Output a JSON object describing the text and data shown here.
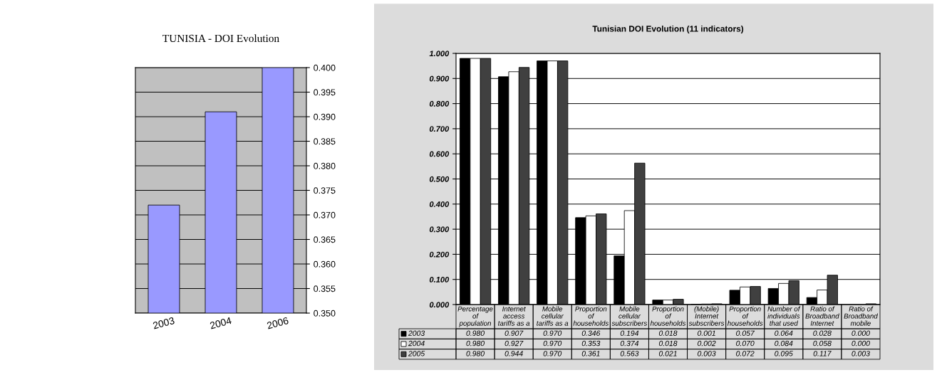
{
  "chart_data": [
    {
      "type": "bar",
      "title": "TUNISIA - DOI Evolution",
      "categories": [
        "2003",
        "2004",
        "2006"
      ],
      "series": [
        {
          "color": "#9999ff",
          "values": [
            0.372,
            0.391,
            0.4
          ]
        }
      ],
      "ylim": [
        0.35,
        0.4
      ],
      "yticks": [
        {
          "value": 0.35,
          "label": "0.350"
        },
        {
          "value": 0.355,
          "label": "0.355"
        },
        {
          "value": 0.36,
          "label": "0.360"
        },
        {
          "value": 0.365,
          "label": "0.365"
        },
        {
          "value": 0.37,
          "label": "0.370"
        },
        {
          "value": 0.375,
          "label": "0.375"
        },
        {
          "value": 0.38,
          "label": "0.380"
        },
        {
          "value": 0.385,
          "label": "0.385"
        },
        {
          "value": 0.39,
          "label": "0.390"
        },
        {
          "value": 0.395,
          "label": "0.395"
        },
        {
          "value": 0.4,
          "label": "0.400"
        }
      ],
      "grid": "y"
    },
    {
      "type": "bar",
      "title": "Tunisian DOI Evolution (11 indicators)",
      "categories": [
        "Percentage\nof\npopulation",
        "Internet\naccess\ntariffs as a",
        "Mobile\ncellular\ntariffs as a",
        "Proportion\nof\nhouseholds",
        "Mobile\ncellular\nsubscribers",
        "Proportion\nof\nhouseholds",
        "(Mobile)\nInternet\nsubscribers",
        "Proportion\nof\nhouseholds",
        "Number of\nindividuals\nthat used",
        "Ratio of\nBroadband\nInternet",
        "Ratio of\nBroadband\nmobile"
      ],
      "series": [
        {
          "name": "2003",
          "color": "#000000",
          "values": [
            0.98,
            0.907,
            0.97,
            0.346,
            0.194,
            0.018,
            0.001,
            0.057,
            0.064,
            0.028,
            0.0
          ],
          "value_labels": [
            "0.980",
            "0.907",
            "0.970",
            "0.346",
            "0.194",
            "0.018",
            "0.001",
            "0.057",
            "0.064",
            "0.028",
            "0.000"
          ]
        },
        {
          "name": "2004",
          "color": "#ffffff",
          "values": [
            0.98,
            0.927,
            0.97,
            0.353,
            0.374,
            0.018,
            0.002,
            0.07,
            0.084,
            0.058,
            0.0
          ],
          "value_labels": [
            "0.980",
            "0.927",
            "0.970",
            "0.353",
            "0.374",
            "0.018",
            "0.002",
            "0.070",
            "0.084",
            "0.058",
            "0.000"
          ]
        },
        {
          "name": "2005",
          "color": "#404040",
          "values": [
            0.98,
            0.944,
            0.97,
            0.361,
            0.563,
            0.021,
            0.003,
            0.072,
            0.095,
            0.117,
            0.003
          ],
          "value_labels": [
            "0.980",
            "0.944",
            "0.970",
            "0.361",
            "0.563",
            "0.021",
            "0.003",
            "0.072",
            "0.095",
            "0.117",
            "0.003"
          ]
        }
      ],
      "ylim": [
        0,
        1
      ],
      "yticks": [
        {
          "value": 0,
          "label": "0.000"
        },
        {
          "value": 0.1,
          "label": "0.100"
        },
        {
          "value": 0.2,
          "label": "0.200"
        },
        {
          "value": 0.3,
          "label": "0.300"
        },
        {
          "value": 0.4,
          "label": "0.400"
        },
        {
          "value": 0.5,
          "label": "0.500"
        },
        {
          "value": 0.6,
          "label": "0.600"
        },
        {
          "value": 0.7,
          "label": "0.700"
        },
        {
          "value": 0.8,
          "label": "0.800"
        },
        {
          "value": 0.9,
          "label": "0.900"
        },
        {
          "value": 1.0,
          "label": "1.000"
        }
      ],
      "grid": "y",
      "legend": "bottom left"
    }
  ]
}
